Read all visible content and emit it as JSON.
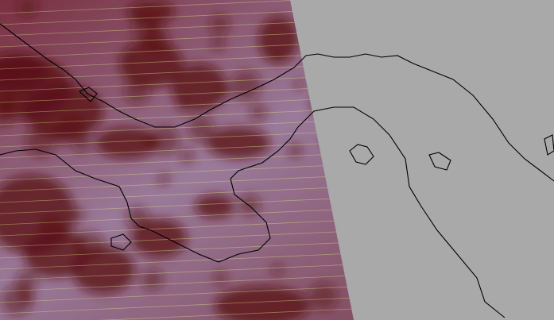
{
  "map": {
    "no_data_color": "#a9a9a9",
    "swath_base_color": "#8a6a86",
    "cloud_color": "#5a0f14",
    "stripe_color": "#d8e08a",
    "coastline_color": "#000000"
  }
}
